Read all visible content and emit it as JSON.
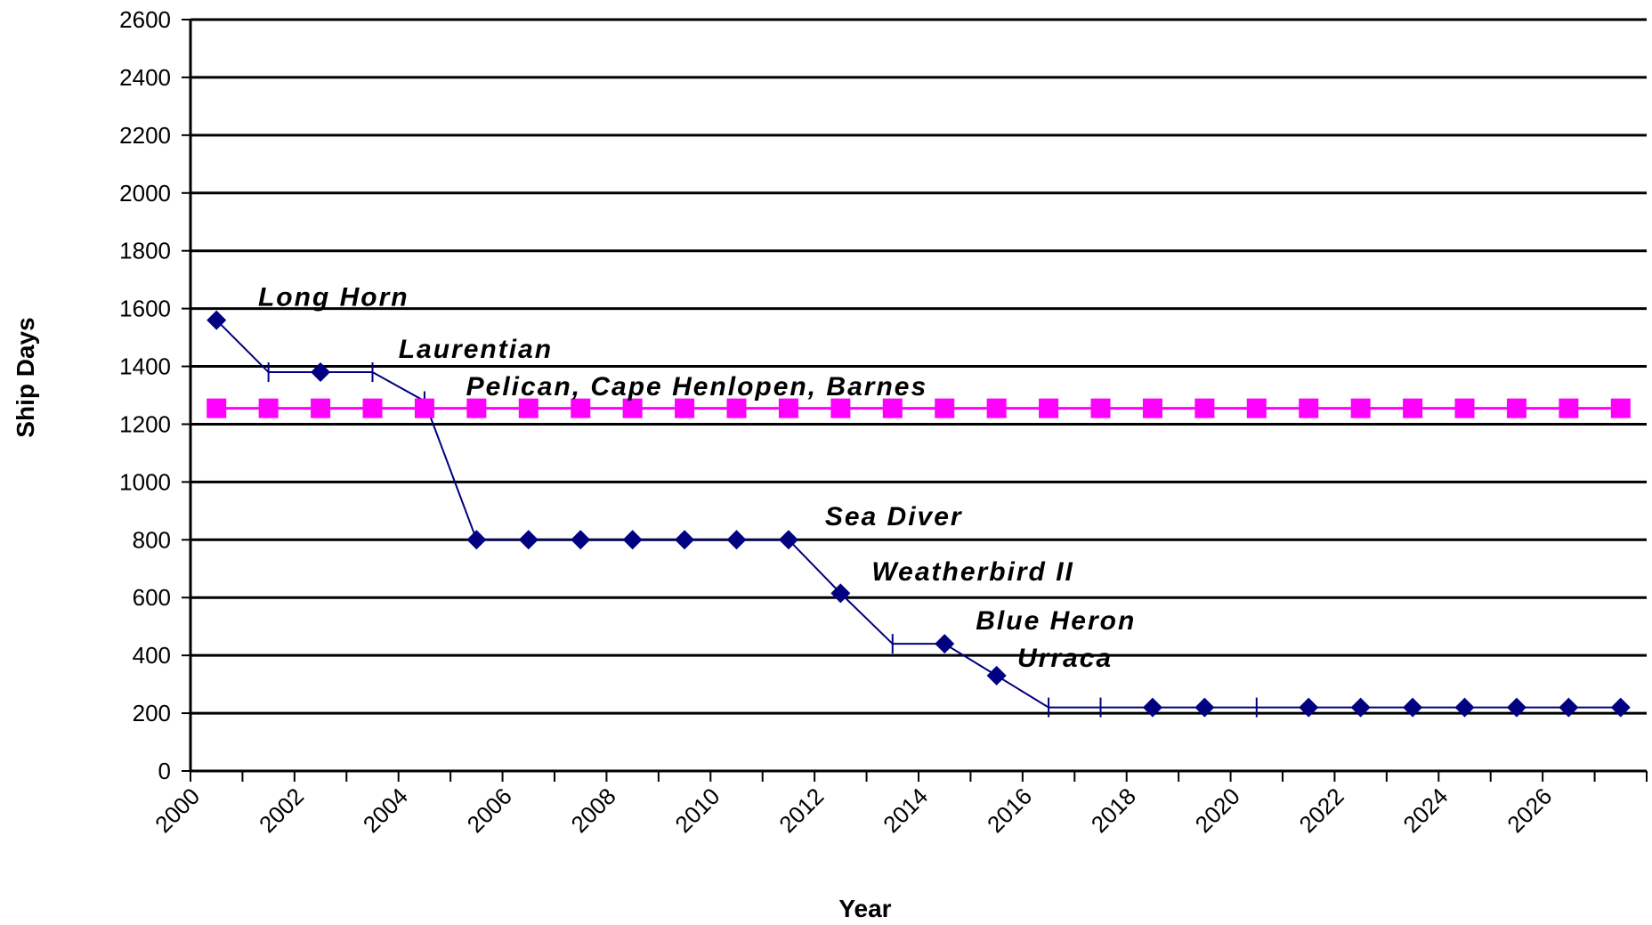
{
  "chart_data": {
    "type": "line",
    "xlabel": "Year",
    "ylabel": "Ship Days",
    "ylim": [
      0,
      2600
    ],
    "yticks": [
      0,
      200,
      400,
      600,
      800,
      1000,
      1200,
      1400,
      1600,
      1800,
      2000,
      2200,
      2400,
      2600
    ],
    "xlim": [
      2000,
      2028
    ],
    "xtick_labels": [
      "2000",
      "2002",
      "2004",
      "2006",
      "2008",
      "2010",
      "2012",
      "2014",
      "2016",
      "2018",
      "2020",
      "2022",
      "2024",
      "2026"
    ],
    "grid": "horizontal",
    "colors": {
      "fleet_line": "#000080",
      "reference_line": "#ff00ff"
    },
    "series": [
      {
        "key": "fleet",
        "x": [
          2000.5,
          2001.5,
          2002.5,
          2003.5,
          2004.5,
          2005.5,
          2006.5,
          2007.5,
          2008.5,
          2009.5,
          2010.5,
          2011.5,
          2012.5,
          2013.5,
          2014.5,
          2015.5,
          2016.5,
          2017.5,
          2018.5,
          2019.5,
          2020.5,
          2021.5,
          2022.5,
          2023.5,
          2024.5,
          2025.5,
          2026.5,
          2027.5
        ],
        "values": [
          1560,
          1380,
          1380,
          1380,
          1280,
          800,
          800,
          800,
          800,
          800,
          800,
          800,
          615,
          440,
          440,
          330,
          220,
          220,
          220,
          220,
          220,
          220,
          220,
          220,
          220,
          220,
          220,
          220
        ],
        "markers": [
          "diamond",
          "plus",
          "diamond",
          "plus",
          "plus",
          "diamond",
          "diamond",
          "diamond",
          "diamond",
          "diamond",
          "diamond",
          "diamond",
          "diamond",
          "plus",
          "diamond",
          "diamond",
          "plus",
          "plus",
          "diamond",
          "diamond",
          "plus",
          "diamond",
          "diamond",
          "diamond",
          "diamond",
          "diamond",
          "diamond",
          "diamond"
        ]
      },
      {
        "key": "reference",
        "x": [
          2000.5,
          2001.5,
          2002.5,
          2003.5,
          2004.5,
          2005.5,
          2006.5,
          2007.5,
          2008.5,
          2009.5,
          2010.5,
          2011.5,
          2012.5,
          2013.5,
          2014.5,
          2015.5,
          2016.5,
          2017.5,
          2018.5,
          2019.5,
          2020.5,
          2021.5,
          2022.5,
          2023.5,
          2024.5,
          2025.5,
          2026.5,
          2027.5
        ],
        "values": [
          1255,
          1255,
          1255,
          1255,
          1255,
          1255,
          1255,
          1255,
          1255,
          1255,
          1255,
          1255,
          1255,
          1255,
          1255,
          1255,
          1255,
          1255,
          1255,
          1255,
          1255,
          1255,
          1255,
          1255,
          1255,
          1255,
          1255,
          1255
        ]
      }
    ],
    "annotations": [
      {
        "text": "Long Horn",
        "x": 2001.3,
        "y": 1610
      },
      {
        "text": "Laurentian",
        "x": 2004.0,
        "y": 1430
      },
      {
        "text": "Pelican, Cape Henlopen, Barnes",
        "x": 2005.3,
        "y": 1300
      },
      {
        "text": "Sea Diver",
        "x": 2012.2,
        "y": 850
      },
      {
        "text": "Weatherbird II",
        "x": 2013.1,
        "y": 660
      },
      {
        "text": "Blue Heron",
        "x": 2015.1,
        "y": 490
      },
      {
        "text": "Urraca",
        "x": 2015.9,
        "y": 360
      }
    ]
  }
}
